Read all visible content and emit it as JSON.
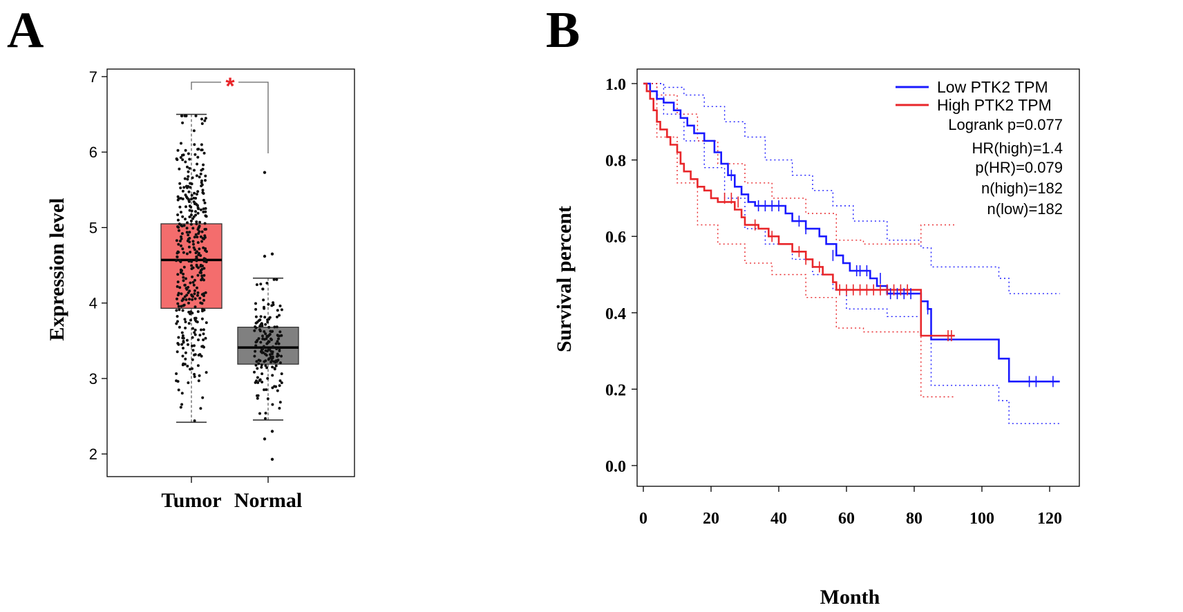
{
  "chart_data": [
    {
      "panel": "A",
      "type": "box",
      "ylabel": "Expression level",
      "ylim": [
        1.7,
        7.1
      ],
      "yticks": [
        "2",
        "3",
        "4",
        "5",
        "6",
        "7"
      ],
      "categories": [
        "Tumor",
        "Normal"
      ],
      "boxes": [
        {
          "name": "Tumor",
          "min": 2.42,
          "q1": 3.93,
          "median": 4.57,
          "q3": 5.05,
          "max": 6.5,
          "color": "#f46d6d",
          "n_points": 380
        },
        {
          "name": "Normal",
          "min": 2.45,
          "q1": 3.19,
          "median": 3.41,
          "q3": 3.68,
          "max": 4.33,
          "color": "#808080",
          "n_points": 170
        }
      ],
      "outliers": [
        5.73,
        4.65,
        4.62,
        2.3,
        2.2,
        1.93
      ],
      "significance": "*"
    },
    {
      "panel": "B",
      "type": "line",
      "xlabel": "Month",
      "ylabel": "Survival percent",
      "xlim": [
        0,
        125
      ],
      "ylim": [
        -0.05,
        1.02
      ],
      "xticks": [
        "0",
        "20",
        "40",
        "60",
        "80",
        "100",
        "120"
      ],
      "yticks": [
        "0.0",
        "0.2",
        "0.4",
        "0.6",
        "0.8",
        "1.0"
      ],
      "series": [
        {
          "name": "Low PTK2 TPM",
          "color": "#1a1aff",
          "steps": [
            [
              0,
              1.0
            ],
            [
              2,
              0.98
            ],
            [
              4,
              0.96
            ],
            [
              6,
              0.95
            ],
            [
              9,
              0.93
            ],
            [
              11,
              0.91
            ],
            [
              13,
              0.89
            ],
            [
              15,
              0.87
            ],
            [
              18,
              0.85
            ],
            [
              21,
              0.82
            ],
            [
              23,
              0.79
            ],
            [
              25,
              0.76
            ],
            [
              27,
              0.73
            ],
            [
              29,
              0.71
            ],
            [
              31,
              0.69
            ],
            [
              33,
              0.68
            ],
            [
              42,
              0.66
            ],
            [
              44,
              0.64
            ],
            [
              48,
              0.62
            ],
            [
              52,
              0.6
            ],
            [
              54,
              0.58
            ],
            [
              57,
              0.55
            ],
            [
              59,
              0.53
            ],
            [
              61,
              0.51
            ],
            [
              67,
              0.49
            ],
            [
              69,
              0.47
            ],
            [
              72,
              0.45
            ],
            [
              82,
              0.43
            ],
            [
              84,
              0.41
            ],
            [
              85,
              0.33
            ],
            [
              105,
              0.28
            ],
            [
              108,
              0.22
            ],
            [
              123,
              0.22
            ]
          ],
          "ci_upper": [
            [
              0,
              1.0
            ],
            [
              6,
              0.99
            ],
            [
              12,
              0.97
            ],
            [
              18,
              0.94
            ],
            [
              24,
              0.9
            ],
            [
              30,
              0.86
            ],
            [
              36,
              0.8
            ],
            [
              44,
              0.76
            ],
            [
              50,
              0.72
            ],
            [
              56,
              0.68
            ],
            [
              62,
              0.64
            ],
            [
              72,
              0.59
            ],
            [
              82,
              0.57
            ],
            [
              85,
              0.52
            ],
            [
              105,
              0.49
            ],
            [
              108,
              0.45
            ],
            [
              123,
              0.45
            ]
          ],
          "ci_lower": [
            [
              0,
              1.0
            ],
            [
              6,
              0.92
            ],
            [
              12,
              0.85
            ],
            [
              18,
              0.78
            ],
            [
              24,
              0.7
            ],
            [
              30,
              0.62
            ],
            [
              36,
              0.58
            ],
            [
              44,
              0.54
            ],
            [
              50,
              0.5
            ],
            [
              56,
              0.46
            ],
            [
              60,
              0.41
            ],
            [
              72,
              0.39
            ],
            [
              82,
              0.34
            ],
            [
              85,
              0.21
            ],
            [
              105,
              0.17
            ],
            [
              108,
              0.11
            ],
            [
              123,
              0.11
            ]
          ],
          "censors": [
            [
              26,
              0.76
            ],
            [
              34,
              0.68
            ],
            [
              36,
              0.68
            ],
            [
              38,
              0.68
            ],
            [
              40,
              0.68
            ],
            [
              46,
              0.64
            ],
            [
              48,
              0.62
            ],
            [
              56,
              0.55
            ],
            [
              63,
              0.51
            ],
            [
              64,
              0.51
            ],
            [
              66,
              0.51
            ],
            [
              70,
              0.49
            ],
            [
              73,
              0.45
            ],
            [
              75,
              0.45
            ],
            [
              77,
              0.45
            ],
            [
              79,
              0.45
            ],
            [
              84,
              0.41
            ],
            [
              114,
              0.22
            ],
            [
              116,
              0.22
            ],
            [
              121,
              0.22
            ]
          ]
        },
        {
          "name": "High PTK2 TPM",
          "color": "#e8262a",
          "steps": [
            [
              0,
              1.0
            ],
            [
              1,
              0.98
            ],
            [
              2,
              0.96
            ],
            [
              3,
              0.93
            ],
            [
              4,
              0.9
            ],
            [
              5,
              0.88
            ],
            [
              7,
              0.86
            ],
            [
              8,
              0.84
            ],
            [
              10,
              0.82
            ],
            [
              11,
              0.79
            ],
            [
              12,
              0.77
            ],
            [
              14,
              0.75
            ],
            [
              16,
              0.73
            ],
            [
              18,
              0.72
            ],
            [
              20,
              0.7
            ],
            [
              22,
              0.69
            ],
            [
              27,
              0.67
            ],
            [
              29,
              0.65
            ],
            [
              30,
              0.63
            ],
            [
              34,
              0.62
            ],
            [
              37,
              0.6
            ],
            [
              40,
              0.58
            ],
            [
              44,
              0.56
            ],
            [
              48,
              0.54
            ],
            [
              50,
              0.52
            ],
            [
              53,
              0.5
            ],
            [
              56,
              0.48
            ],
            [
              57,
              0.46
            ],
            [
              82,
              0.34
            ],
            [
              92,
              0.34
            ]
          ],
          "ci_upper": [
            [
              0,
              1.0
            ],
            [
              4,
              0.97
            ],
            [
              10,
              0.92
            ],
            [
              16,
              0.85
            ],
            [
              22,
              0.79
            ],
            [
              30,
              0.74
            ],
            [
              38,
              0.7
            ],
            [
              48,
              0.66
            ],
            [
              57,
              0.59
            ],
            [
              65,
              0.58
            ],
            [
              82,
              0.63
            ],
            [
              92,
              0.63
            ]
          ],
          "ci_lower": [
            [
              0,
              1.0
            ],
            [
              4,
              0.86
            ],
            [
              10,
              0.74
            ],
            [
              16,
              0.63
            ],
            [
              22,
              0.58
            ],
            [
              30,
              0.53
            ],
            [
              38,
              0.5
            ],
            [
              48,
              0.44
            ],
            [
              57,
              0.36
            ],
            [
              65,
              0.35
            ],
            [
              82,
              0.18
            ],
            [
              92,
              0.18
            ]
          ],
          "censors": [
            [
              24,
              0.7
            ],
            [
              26,
              0.7
            ],
            [
              28,
              0.69
            ],
            [
              33,
              0.63
            ],
            [
              38,
              0.6
            ],
            [
              46,
              0.56
            ],
            [
              48,
              0.54
            ],
            [
              52,
              0.52
            ],
            [
              58,
              0.46
            ],
            [
              60,
              0.46
            ],
            [
              62,
              0.46
            ],
            [
              64,
              0.46
            ],
            [
              66,
              0.46
            ],
            [
              68,
              0.46
            ],
            [
              70,
              0.46
            ],
            [
              72,
              0.46
            ],
            [
              74,
              0.46
            ],
            [
              76,
              0.46
            ],
            [
              78,
              0.46
            ],
            [
              90,
              0.34
            ],
            [
              91,
              0.34
            ]
          ]
        }
      ],
      "legend_position": "top-right",
      "stats": [
        "Logrank p=0.077",
        "HR(high)=1.4",
        "p(HR)=0.079",
        "n(high)=182",
        "n(low)=182"
      ]
    }
  ],
  "panel_labels": [
    "A",
    "B"
  ]
}
